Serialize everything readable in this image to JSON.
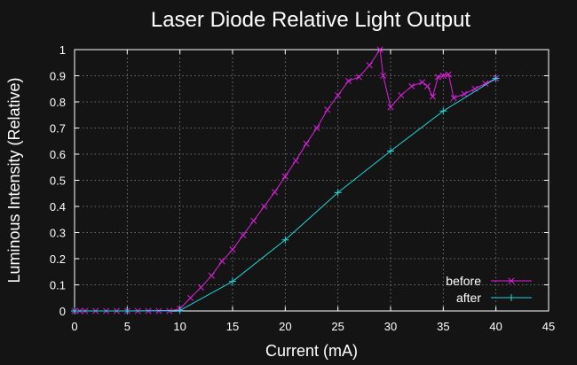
{
  "chart_data": {
    "type": "line",
    "title": "Laser Diode Relative Light Output",
    "xlabel": "Current (mA)",
    "ylabel": "Luminous Intensity (Relative)",
    "xlim": [
      0,
      45
    ],
    "ylim": [
      0,
      1
    ],
    "xticks": [
      0,
      5,
      10,
      15,
      20,
      25,
      30,
      35,
      40,
      45
    ],
    "yticks": [
      0,
      0.1,
      0.2,
      0.3,
      0.4,
      0.5,
      0.6,
      0.7,
      0.8,
      0.9,
      1
    ],
    "grid": true,
    "legend_position": "bottom-right",
    "series": [
      {
        "name": "before",
        "color": "#e020e0",
        "marker": "x",
        "x": [
          0,
          0.5,
          1,
          2,
          3,
          4,
          5,
          6,
          7,
          8,
          9,
          10,
          11,
          12,
          13,
          14,
          15,
          16,
          17,
          18,
          19,
          20,
          21,
          22,
          23,
          24,
          25,
          26,
          27,
          28,
          29,
          29.3,
          30,
          31,
          32,
          33,
          33.5,
          34,
          34.5,
          35,
          35.5,
          36,
          37,
          38,
          39,
          40
        ],
        "y": [
          0,
          0,
          0,
          0,
          0,
          0,
          0,
          0,
          0,
          0,
          0,
          0.008,
          0.05,
          0.09,
          0.135,
          0.19,
          0.235,
          0.29,
          0.345,
          0.4,
          0.455,
          0.515,
          0.575,
          0.64,
          0.7,
          0.77,
          0.825,
          0.88,
          0.895,
          0.94,
          1.0,
          0.9,
          0.78,
          0.825,
          0.86,
          0.875,
          0.86,
          0.82,
          0.895,
          0.9,
          0.905,
          0.815,
          0.83,
          0.85,
          0.87,
          0.89
        ]
      },
      {
        "name": "after",
        "color": "#20d8d8",
        "marker": "+",
        "x": [
          0,
          5,
          10,
          15,
          20,
          25,
          30,
          35,
          40
        ],
        "y": [
          0,
          0,
          0.002,
          0.113,
          0.272,
          0.453,
          0.612,
          0.765,
          0.89
        ]
      }
    ]
  }
}
